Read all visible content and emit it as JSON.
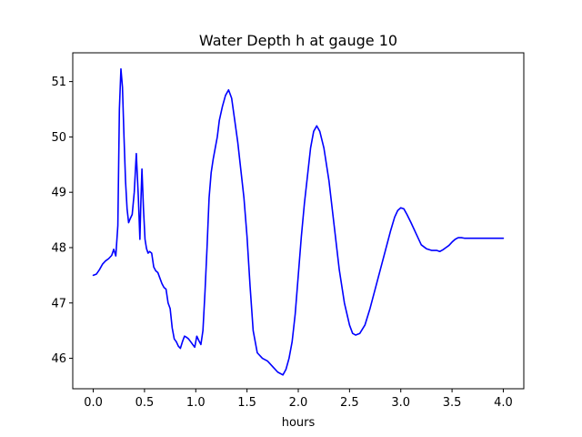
{
  "chart_data": {
    "type": "line",
    "title": "Water Depth h at gauge 10",
    "xlabel": "hours",
    "ylabel": "",
    "xlim": [
      -0.2,
      4.2
    ],
    "ylim": [
      45.45,
      51.52
    ],
    "xticks": [
      0.0,
      0.5,
      1.0,
      1.5,
      2.0,
      2.5,
      3.0,
      3.5,
      4.0
    ],
    "xtick_labels": [
      "0.0",
      "0.5",
      "1.0",
      "1.5",
      "2.0",
      "2.5",
      "3.0",
      "3.5",
      "4.0"
    ],
    "yticks": [
      46,
      47,
      48,
      49,
      50,
      51
    ],
    "ytick_labels": [
      "46",
      "47",
      "48",
      "49",
      "50",
      "51"
    ],
    "grid": false,
    "series": [
      {
        "color": "#0000ff",
        "x": [
          0.0,
          0.03,
          0.06,
          0.09,
          0.12,
          0.15,
          0.18,
          0.2,
          0.22,
          0.24,
          0.255,
          0.27,
          0.285,
          0.3,
          0.315,
          0.33,
          0.345,
          0.36,
          0.38,
          0.4,
          0.42,
          0.44,
          0.455,
          0.465,
          0.475,
          0.49,
          0.505,
          0.52,
          0.535,
          0.55,
          0.57,
          0.59,
          0.61,
          0.63,
          0.65,
          0.67,
          0.69,
          0.71,
          0.73,
          0.75,
          0.77,
          0.79,
          0.81,
          0.83,
          0.85,
          0.87,
          0.89,
          0.91,
          0.93,
          0.95,
          0.97,
          0.99,
          1.01,
          1.03,
          1.05,
          1.07,
          1.09,
          1.11,
          1.13,
          1.15,
          1.17,
          1.19,
          1.21,
          1.23,
          1.26,
          1.29,
          1.32,
          1.35,
          1.38,
          1.41,
          1.44,
          1.47,
          1.5,
          1.53,
          1.56,
          1.6,
          1.65,
          1.7,
          1.75,
          1.8,
          1.85,
          1.88,
          1.91,
          1.94,
          1.97,
          2.0,
          2.03,
          2.06,
          2.09,
          2.12,
          2.15,
          2.18,
          2.21,
          2.25,
          2.3,
          2.35,
          2.4,
          2.45,
          2.5,
          2.53,
          2.56,
          2.6,
          2.65,
          2.7,
          2.75,
          2.8,
          2.85,
          2.9,
          2.94,
          2.97,
          3.0,
          3.03,
          3.06,
          3.1,
          3.15,
          3.2,
          3.25,
          3.3,
          3.35,
          3.38,
          3.41,
          3.44,
          3.47,
          3.5,
          3.53,
          3.56,
          3.59,
          3.62,
          3.65,
          3.68,
          3.71,
          3.74,
          3.77,
          3.8,
          3.83,
          3.86,
          3.89,
          3.92,
          3.95,
          3.98,
          4.0
        ],
        "y": [
          47.5,
          47.52,
          47.6,
          47.7,
          47.76,
          47.8,
          47.86,
          47.97,
          47.85,
          48.4,
          50.5,
          51.23,
          50.9,
          50.0,
          49.2,
          48.7,
          48.45,
          48.52,
          48.6,
          49.0,
          49.7,
          48.9,
          48.15,
          48.85,
          49.42,
          48.7,
          48.15,
          47.98,
          47.9,
          47.93,
          47.9,
          47.65,
          47.58,
          47.55,
          47.45,
          47.35,
          47.28,
          47.25,
          47.0,
          46.9,
          46.55,
          46.35,
          46.3,
          46.22,
          46.18,
          46.3,
          46.4,
          46.38,
          46.35,
          46.3,
          46.25,
          46.2,
          46.4,
          46.32,
          46.25,
          46.5,
          47.2,
          48.0,
          48.9,
          49.35,
          49.6,
          49.8,
          50.0,
          50.3,
          50.55,
          50.75,
          50.85,
          50.7,
          50.3,
          49.9,
          49.4,
          48.9,
          48.2,
          47.3,
          46.5,
          46.1,
          46.0,
          45.95,
          45.85,
          45.75,
          45.7,
          45.8,
          46.0,
          46.3,
          46.8,
          47.5,
          48.2,
          48.8,
          49.3,
          49.8,
          50.1,
          50.2,
          50.1,
          49.8,
          49.2,
          48.4,
          47.6,
          47.0,
          46.6,
          46.45,
          46.42,
          46.45,
          46.6,
          46.9,
          47.25,
          47.6,
          47.95,
          48.3,
          48.55,
          48.67,
          48.72,
          48.7,
          48.6,
          48.45,
          48.25,
          48.05,
          47.98,
          47.95,
          47.95,
          47.93,
          47.96,
          48.0,
          48.04,
          48.1,
          48.15,
          48.18,
          48.18,
          48.17,
          48.17,
          48.17,
          48.17,
          48.17,
          48.17,
          48.17,
          48.17,
          48.17,
          48.17,
          48.17,
          48.17,
          48.17,
          48.17
        ]
      }
    ]
  }
}
